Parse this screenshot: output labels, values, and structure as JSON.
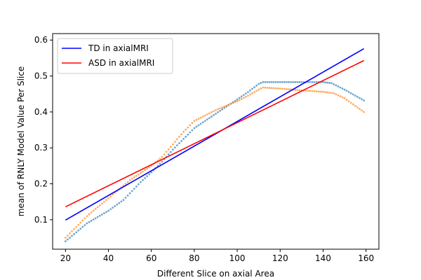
{
  "chart_data": {
    "type": "scatter",
    "title": "",
    "xlabel": "Different Slice on axial Area",
    "ylabel": "mean of RNLY Model Value Per Slice",
    "xlim": [
      14,
      166
    ],
    "ylim": [
      0.018,
      0.618
    ],
    "xticks": [
      20,
      40,
      60,
      80,
      100,
      120,
      140,
      160
    ],
    "yticks": [
      0.1,
      0.2,
      0.3,
      0.4,
      0.5,
      0.6
    ],
    "grid": false,
    "legend_position": "upper-left",
    "series": [
      {
        "name": "TD in axialMRI",
        "kind": "line",
        "color": "#0000ff",
        "x": [
          20,
          159
        ],
        "y": [
          0.099,
          0.576
        ]
      },
      {
        "name": "ASD in axialMRI",
        "kind": "line",
        "color": "#ff0000",
        "x": [
          20,
          159
        ],
        "y": [
          0.136,
          0.543
        ]
      },
      {
        "name": "",
        "kind": "scatter",
        "color": "#1f77b4",
        "x": [
          20,
          30,
          40,
          47,
          55,
          60,
          65,
          70,
          80,
          90,
          100,
          105,
          110,
          112,
          120,
          130,
          140,
          144,
          150,
          159
        ],
        "y": [
          0.04,
          0.09,
          0.125,
          0.155,
          0.205,
          0.232,
          0.262,
          0.295,
          0.355,
          0.395,
          0.435,
          0.455,
          0.478,
          0.483,
          0.483,
          0.483,
          0.483,
          0.48,
          0.462,
          0.432
        ]
      },
      {
        "name": "",
        "kind": "scatter",
        "color": "#ff7f0e",
        "x": [
          20,
          30,
          40,
          50,
          60,
          65,
          70,
          75,
          80,
          90,
          100,
          105,
          110,
          112,
          120,
          130,
          140,
          145,
          150,
          159
        ],
        "y": [
          0.05,
          0.11,
          0.16,
          0.21,
          0.25,
          0.275,
          0.31,
          0.345,
          0.375,
          0.405,
          0.43,
          0.445,
          0.462,
          0.468,
          0.465,
          0.46,
          0.456,
          0.452,
          0.438,
          0.4
        ]
      }
    ]
  }
}
